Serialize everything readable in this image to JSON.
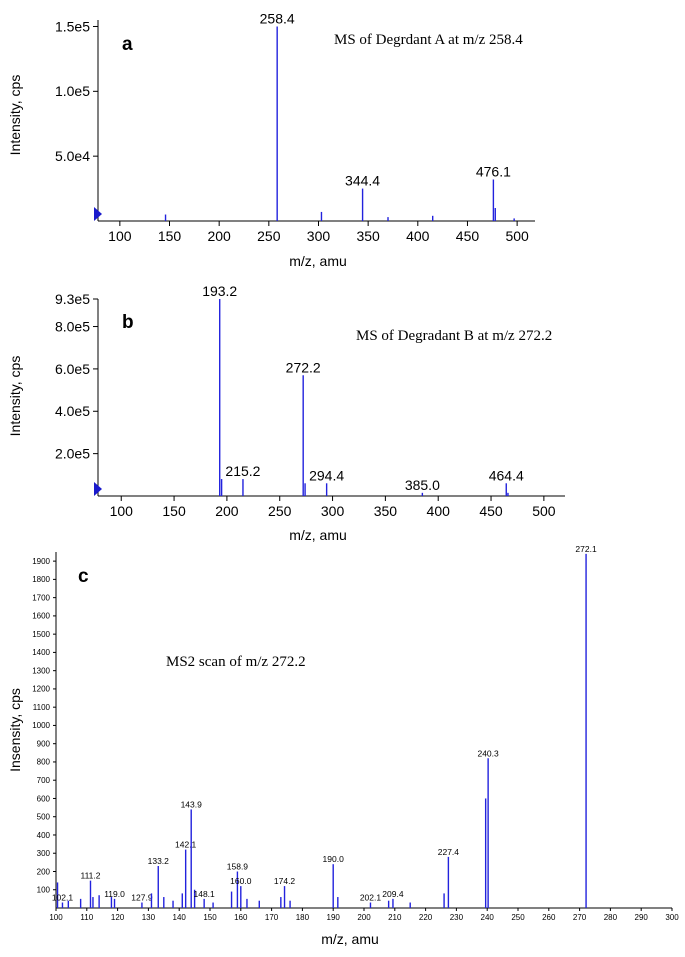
{
  "chart_data": [
    {
      "type": "bar",
      "panel_label": "a",
      "annotation": "MS of Degrdant A at m/z 258.4",
      "xlabel": "m/z, amu",
      "ylabel": "Intensity, cps",
      "xlim": [
        78,
        518
      ],
      "ylim": [
        0,
        155000
      ],
      "xticks": [
        100,
        150,
        200,
        250,
        300,
        350,
        400,
        450,
        500
      ],
      "xtick_labels": [
        "100",
        "150",
        "200",
        "250",
        "300",
        "350",
        "400",
        "450",
        "500"
      ],
      "yticks": [
        50000,
        100000,
        150000
      ],
      "ytick_labels": [
        "5.0e4",
        "1.0e5",
        "1.5e5"
      ],
      "color": "#2222dd",
      "peaks": [
        {
          "x": 146.0,
          "y": 5000
        },
        {
          "x": 258.4,
          "y": 150000,
          "label": "258.4"
        },
        {
          "x": 303.0,
          "y": 7000
        },
        {
          "x": 344.4,
          "y": 25000,
          "label": "344.4"
        },
        {
          "x": 370.0,
          "y": 3000
        },
        {
          "x": 415.0,
          "y": 4000
        },
        {
          "x": 476.1,
          "y": 32000,
          "label": "476.1"
        },
        {
          "x": 478.0,
          "y": 10000
        },
        {
          "x": 497.0,
          "y": 2000
        }
      ]
    },
    {
      "type": "bar",
      "panel_label": "b",
      "annotation": "MS of Degradant B at m/z 272.2",
      "xlabel": "m/z, amu",
      "ylabel": "Intensity, cps",
      "xlim": [
        78,
        520
      ],
      "ylim": [
        0,
        930000
      ],
      "xticks": [
        100,
        150,
        200,
        250,
        300,
        350,
        400,
        450,
        500
      ],
      "xtick_labels": [
        "100",
        "150",
        "200",
        "250",
        "300",
        "350",
        "400",
        "450",
        "500"
      ],
      "yticks": [
        200000,
        400000,
        600000,
        800000,
        930000
      ],
      "ytick_labels": [
        "2.0e5",
        "4.0e5",
        "6.0e5",
        "8.0e5",
        "9.3e5"
      ],
      "color": "#2222dd",
      "peaks": [
        {
          "x": 193.2,
          "y": 930000,
          "label": "193.2"
        },
        {
          "x": 195.0,
          "y": 80000
        },
        {
          "x": 215.2,
          "y": 80000,
          "label": "215.2"
        },
        {
          "x": 272.2,
          "y": 570000,
          "label": "272.2"
        },
        {
          "x": 274.0,
          "y": 60000
        },
        {
          "x": 294.4,
          "y": 60000,
          "label": "294.4"
        },
        {
          "x": 385.0,
          "y": 15000,
          "label": "385.0"
        },
        {
          "x": 464.4,
          "y": 60000,
          "label": "464.4"
        },
        {
          "x": 466.0,
          "y": 15000
        }
      ]
    },
    {
      "type": "bar",
      "panel_label": "c",
      "annotation": "MS2 scan of m/z 272.2",
      "xlabel": "m/z, amu",
      "ylabel": "Insensity, cps",
      "xlim": [
        100,
        300
      ],
      "ylim": [
        0,
        1950
      ],
      "xticks": [
        100,
        110,
        120,
        130,
        140,
        150,
        160,
        170,
        180,
        190,
        200,
        210,
        220,
        230,
        240,
        250,
        260,
        270,
        280,
        290,
        300
      ],
      "xtick_labels": [
        "100",
        "110",
        "120",
        "130",
        "140",
        "150",
        "160",
        "170",
        "180",
        "190",
        "200",
        "210",
        "220",
        "230",
        "240",
        "250",
        "260",
        "270",
        "280",
        "290",
        "300"
      ],
      "yticks": [
        100,
        200,
        300,
        400,
        500,
        600,
        700,
        800,
        900,
        1000,
        1100,
        1200,
        1300,
        1400,
        1500,
        1600,
        1700,
        1800,
        1900
      ],
      "ytick_labels": [
        "100",
        "200",
        "300",
        "400",
        "500",
        "600",
        "700",
        "800",
        "900",
        "1000",
        "1100",
        "1200",
        "1300",
        "1400",
        "1500",
        "1600",
        "1700",
        "1800",
        "1900"
      ],
      "color": "#2222dd",
      "peaks": [
        {
          "x": 100.5,
          "y": 140
        },
        {
          "x": 102.1,
          "y": 30,
          "label": "102.1"
        },
        {
          "x": 104.0,
          "y": 40
        },
        {
          "x": 108.0,
          "y": 50
        },
        {
          "x": 111.2,
          "y": 150,
          "label": "111.2"
        },
        {
          "x": 112.0,
          "y": 60
        },
        {
          "x": 114.0,
          "y": 70
        },
        {
          "x": 118.0,
          "y": 60
        },
        {
          "x": 119.0,
          "y": 50,
          "label": "119.0"
        },
        {
          "x": 127.9,
          "y": 30,
          "label": "127.9"
        },
        {
          "x": 131.0,
          "y": 80
        },
        {
          "x": 133.2,
          "y": 230,
          "label": "133.2"
        },
        {
          "x": 135.0,
          "y": 60
        },
        {
          "x": 138.0,
          "y": 40
        },
        {
          "x": 141.0,
          "y": 80
        },
        {
          "x": 142.1,
          "y": 320,
          "label": "142.1"
        },
        {
          "x": 143.9,
          "y": 540,
          "label": "143.9"
        },
        {
          "x": 145.0,
          "y": 100
        },
        {
          "x": 148.1,
          "y": 50,
          "label": "148.1"
        },
        {
          "x": 151.0,
          "y": 30
        },
        {
          "x": 157.0,
          "y": 90
        },
        {
          "x": 158.9,
          "y": 200,
          "label": "158.9"
        },
        {
          "x": 160.0,
          "y": 120,
          "label": "160.0"
        },
        {
          "x": 162.0,
          "y": 50
        },
        {
          "x": 166.0,
          "y": 40
        },
        {
          "x": 173.0,
          "y": 60
        },
        {
          "x": 174.2,
          "y": 120,
          "label": "174.2"
        },
        {
          "x": 176.0,
          "y": 40
        },
        {
          "x": 190.0,
          "y": 240,
          "label": "190.0"
        },
        {
          "x": 191.5,
          "y": 60
        },
        {
          "x": 202.1,
          "y": 30,
          "label": "202.1"
        },
        {
          "x": 208.0,
          "y": 40
        },
        {
          "x": 209.4,
          "y": 50,
          "label": "209.4"
        },
        {
          "x": 215.0,
          "y": 30
        },
        {
          "x": 226.0,
          "y": 80
        },
        {
          "x": 227.4,
          "y": 280,
          "label": "227.4"
        },
        {
          "x": 239.5,
          "y": 600
        },
        {
          "x": 240.3,
          "y": 820,
          "label": "240.3"
        },
        {
          "x": 272.1,
          "y": 1940,
          "label": "272.1"
        }
      ]
    }
  ]
}
